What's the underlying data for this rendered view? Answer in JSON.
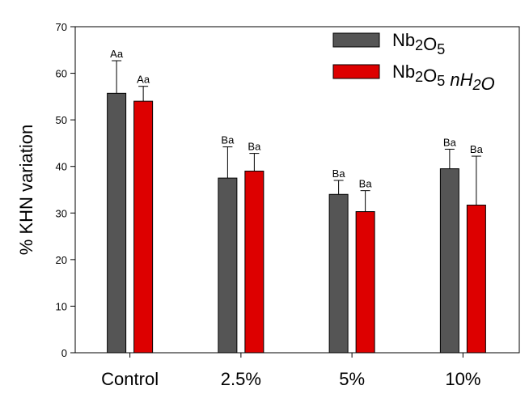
{
  "chart_data": {
    "type": "bar",
    "title": "",
    "xlabel": "",
    "ylabel": "% KHN variation",
    "ylim": [
      0,
      70
    ],
    "yticks": [
      0,
      10,
      20,
      30,
      40,
      50,
      60,
      70
    ],
    "grid": false,
    "legend_position": "top-right",
    "categories": [
      "Control",
      "2.5%",
      "5%",
      "10%"
    ],
    "series": [
      {
        "name": "Nb2O5",
        "legend_parts": [
          {
            "t": "Nb",
            "sub": false,
            "italic": false
          },
          {
            "t": "2",
            "sub": true,
            "italic": false
          },
          {
            "t": "O",
            "sub": false,
            "italic": false
          },
          {
            "t": "5",
            "sub": true,
            "italic": false
          }
        ],
        "color": "#555555",
        "values": [
          55.7,
          37.5,
          34.0,
          39.5
        ],
        "errors": [
          7.0,
          6.7,
          3.0,
          4.2
        ],
        "labels": [
          "Aa",
          "Ba",
          "Ba",
          "Ba"
        ]
      },
      {
        "name": "Nb2O5 nH2O",
        "legend_parts": [
          {
            "t": "Nb",
            "sub": false,
            "italic": false
          },
          {
            "t": "2",
            "sub": true,
            "italic": false
          },
          {
            "t": "O",
            "sub": false,
            "italic": false
          },
          {
            "t": "5",
            "sub": true,
            "italic": false
          },
          {
            "t": " ",
            "sub": false,
            "italic": false
          },
          {
            "t": "nH",
            "sub": false,
            "italic": true
          },
          {
            "t": "2",
            "sub": true,
            "italic": true
          },
          {
            "t": "O",
            "sub": false,
            "italic": true
          }
        ],
        "color": "#dd0000",
        "values": [
          54.0,
          39.0,
          30.3,
          31.7
        ],
        "errors": [
          3.2,
          3.8,
          4.5,
          10.5
        ],
        "labels": [
          "Aa",
          "Ba",
          "Ba",
          "Ba"
        ]
      }
    ]
  }
}
